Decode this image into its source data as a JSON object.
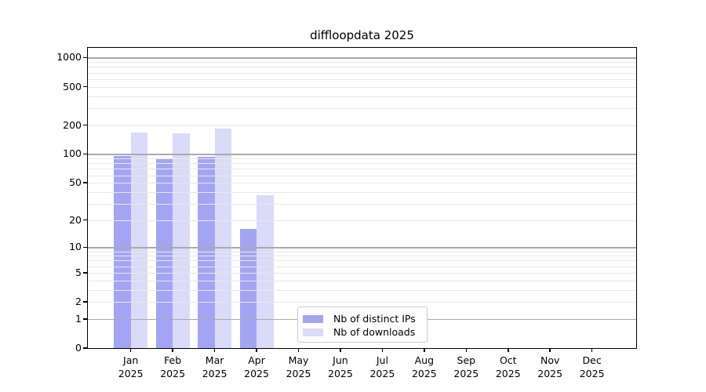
{
  "chart_data": {
    "type": "bar",
    "title": "diffloopdata 2025",
    "x_year": "2025",
    "categories": [
      "Jan",
      "Feb",
      "Mar",
      "Apr",
      "May",
      "Jun",
      "Jul",
      "Aug",
      "Sep",
      "Oct",
      "Nov",
      "Dec"
    ],
    "series": [
      {
        "name": "Nb of distinct IPs",
        "color": "#a4a4f4",
        "values": [
          96,
          88,
          93,
          16,
          0,
          0,
          0,
          0,
          0,
          0,
          0,
          0
        ]
      },
      {
        "name": "Nb of downloads",
        "color": "#dadaf9",
        "values": [
          169,
          163,
          184,
          37,
          0,
          0,
          0,
          0,
          0,
          0,
          0,
          0
        ]
      }
    ],
    "yscale": "log10(1+x)",
    "yticks": [
      0,
      1,
      2,
      5,
      10,
      20,
      50,
      100,
      200,
      500,
      1000
    ],
    "ylim": [
      0,
      1250
    ],
    "grid_major": [
      1,
      10,
      100,
      1000
    ],
    "grid_minor": [
      2,
      3,
      4,
      5,
      6,
      7,
      8,
      9,
      20,
      30,
      40,
      50,
      60,
      70,
      80,
      90,
      200,
      300,
      400,
      500,
      600,
      700,
      800,
      900
    ],
    "legend_position": "lower-center",
    "colors": {
      "grid_major": "#aaaaaa",
      "grid_minor": "#e8e8e8",
      "axis": "#000000",
      "background": "#ffffff"
    }
  }
}
